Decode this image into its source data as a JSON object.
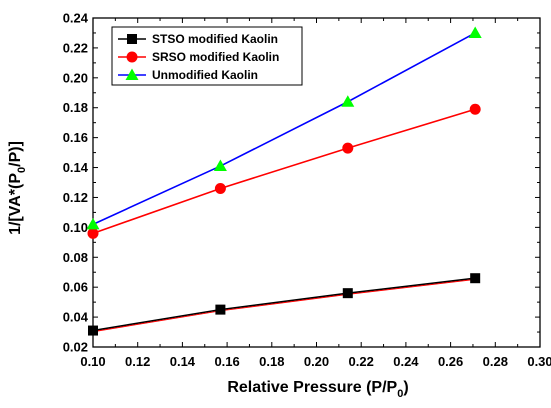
{
  "chart_data": {
    "type": "line",
    "title": "",
    "xlabel": "Relative Pressure (P/P",
    "xlabel_sub": "0",
    "xlabel_end": ")",
    "ylabel": "1/[VA*(P",
    "ylabel_sub": "0",
    "ylabel_end": "/P)]",
    "xlim": [
      0.1,
      0.3
    ],
    "ylim": [
      0.02,
      0.24
    ],
    "xticks": [
      "0.10",
      "0.12",
      "0.14",
      "0.16",
      "0.18",
      "0.20",
      "0.22",
      "0.24",
      "0.26",
      "0.28",
      "0.30"
    ],
    "yticks": [
      "0.02",
      "0.04",
      "0.06",
      "0.08",
      "0.10",
      "0.12",
      "0.14",
      "0.16",
      "0.18",
      "0.20",
      "0.22",
      "0.24"
    ],
    "grid": false,
    "legend_position": "top-left",
    "x": [
      0.1,
      0.157,
      0.214,
      0.271
    ],
    "series": [
      {
        "name": "STSO modified Kaolin",
        "values": [
          0.031,
          0.045,
          0.056,
          0.066
        ],
        "color": "#000000",
        "marker": "square",
        "fit_color": "#ff0000"
      },
      {
        "name": "SRSO modified Kaolin",
        "values": [
          0.096,
          0.126,
          0.153,
          0.179
        ],
        "color": "#ff0000",
        "marker": "circle"
      },
      {
        "name": "Unmodified Kaolin",
        "values": [
          0.102,
          0.141,
          0.184,
          0.23
        ],
        "color": "#0000ff",
        "marker": "triangle",
        "marker_color": "#00ff00"
      }
    ]
  }
}
